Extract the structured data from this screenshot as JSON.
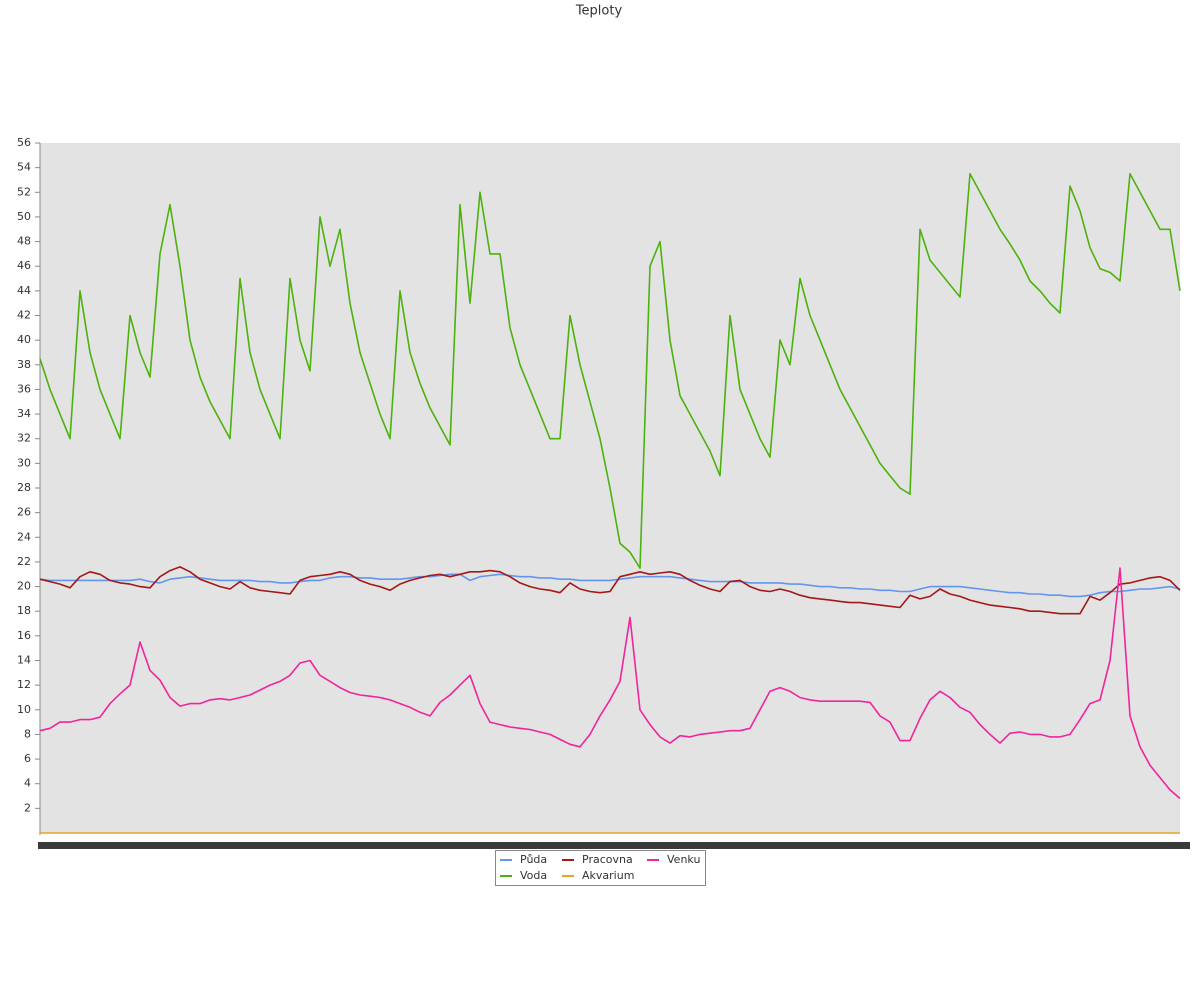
{
  "chart_data": {
    "type": "line",
    "title": "Teploty",
    "ylim": [
      0,
      56
    ],
    "yticks": [
      2,
      4,
      6,
      8,
      10,
      12,
      14,
      16,
      18,
      20,
      22,
      24,
      26,
      28,
      30,
      32,
      34,
      36,
      38,
      40,
      42,
      44,
      46,
      48,
      50,
      52,
      54,
      56
    ],
    "legend": "bottom",
    "series": [
      {
        "name": "Půda",
        "color": "#6495ed",
        "values": [
          20.6,
          20.5,
          20.5,
          20.5,
          20.5,
          20.5,
          20.5,
          20.5,
          20.5,
          20.5,
          20.6,
          20.4,
          20.3,
          20.6,
          20.7,
          20.8,
          20.7,
          20.6,
          20.5,
          20.5,
          20.5,
          20.5,
          20.4,
          20.4,
          20.3,
          20.3,
          20.4,
          20.5,
          20.5,
          20.7,
          20.8,
          20.8,
          20.7,
          20.7,
          20.6,
          20.6,
          20.6,
          20.7,
          20.8,
          20.8,
          20.9,
          21.0,
          21.0,
          20.5,
          20.8,
          20.9,
          21.0,
          20.9,
          20.8,
          20.8,
          20.7,
          20.7,
          20.6,
          20.6,
          20.5,
          20.5,
          20.5,
          20.5,
          20.6,
          20.7,
          20.8,
          20.8,
          20.8,
          20.8,
          20.7,
          20.6,
          20.5,
          20.4,
          20.4,
          20.4,
          20.4,
          20.3,
          20.3,
          20.3,
          20.3,
          20.2,
          20.2,
          20.1,
          20.0,
          20.0,
          19.9,
          19.9,
          19.8,
          19.8,
          19.7,
          19.7,
          19.6,
          19.6,
          19.8,
          20.0,
          20.0,
          20.0,
          20.0,
          19.9,
          19.8,
          19.7,
          19.6,
          19.5,
          19.5,
          19.4,
          19.4,
          19.3,
          19.3,
          19.2,
          19.2,
          19.3,
          19.5,
          19.6,
          19.6,
          19.7,
          19.8,
          19.8,
          19.9,
          20.0,
          19.8
        ]
      },
      {
        "name": "Voda",
        "color": "#4cb20c",
        "values": [
          38.5,
          36,
          34,
          32,
          44,
          39,
          36,
          34,
          32,
          42,
          39,
          37,
          47,
          51,
          46,
          40,
          37,
          35,
          33.5,
          32,
          45,
          39,
          36,
          34,
          32,
          45,
          40,
          37.5,
          50,
          46,
          49,
          43,
          39,
          36.5,
          34,
          32,
          44,
          39,
          36.5,
          34.5,
          33,
          31.5,
          51,
          43,
          52,
          47,
          47,
          41,
          38,
          36,
          34,
          32,
          32,
          42,
          38,
          35,
          32,
          28,
          23.5,
          22.8,
          21.5,
          46,
          48,
          40,
          35.5,
          34,
          32.5,
          31,
          29,
          42,
          36,
          34,
          32,
          30.5,
          40,
          38,
          45,
          42,
          40,
          38,
          36,
          34.5,
          33,
          31.5,
          30,
          29,
          28,
          27.5,
          49,
          46.5,
          45.5,
          44.5,
          43.5,
          53.5,
          52,
          50.5,
          49,
          47.8,
          46.5,
          44.8,
          44,
          43,
          42.2,
          52.5,
          50.5,
          47.5,
          45.8,
          45.5,
          44.8,
          53.5,
          52,
          50.5,
          49,
          49,
          44
        ]
      },
      {
        "name": "Pracovna",
        "color": "#a31818",
        "values": [
          20.6,
          20.4,
          20.2,
          19.9,
          20.8,
          21.2,
          21.0,
          20.5,
          20.3,
          20.2,
          20.0,
          19.9,
          20.8,
          21.3,
          21.6,
          21.2,
          20.6,
          20.3,
          20.0,
          19.8,
          20.4,
          19.9,
          19.7,
          19.6,
          19.5,
          19.4,
          20.5,
          20.8,
          20.9,
          21.0,
          21.2,
          21.0,
          20.5,
          20.2,
          20.0,
          19.7,
          20.2,
          20.5,
          20.7,
          20.9,
          21.0,
          20.8,
          21.0,
          21.2,
          21.2,
          21.3,
          21.2,
          20.8,
          20.3,
          20.0,
          19.8,
          19.7,
          19.5,
          20.3,
          19.8,
          19.6,
          19.5,
          19.6,
          20.8,
          21.0,
          21.2,
          21.0,
          21.1,
          21.2,
          21.0,
          20.5,
          20.1,
          19.8,
          19.6,
          20.4,
          20.5,
          20.0,
          19.7,
          19.6,
          19.8,
          19.6,
          19.3,
          19.1,
          19.0,
          18.9,
          18.8,
          18.7,
          18.7,
          18.6,
          18.5,
          18.4,
          18.3,
          19.3,
          19.0,
          19.2,
          19.8,
          19.4,
          19.2,
          18.9,
          18.7,
          18.5,
          18.4,
          18.3,
          18.2,
          18.0,
          18.0,
          17.9,
          17.8,
          17.8,
          17.8,
          19.2,
          18.9,
          19.5,
          20.2,
          20.3,
          20.5,
          20.7,
          20.8,
          20.5,
          19.7
        ]
      },
      {
        "name": "Akvarium",
        "color": "#e8a323",
        "values": [
          0,
          0,
          0,
          0,
          0,
          0,
          0,
          0,
          0,
          0,
          0,
          0,
          0,
          0,
          0,
          0,
          0,
          0,
          0,
          0,
          0,
          0,
          0,
          0,
          0,
          0,
          0,
          0,
          0,
          0,
          0,
          0,
          0,
          0,
          0,
          0,
          0,
          0,
          0,
          0,
          0,
          0,
          0,
          0,
          0,
          0,
          0,
          0,
          0,
          0,
          0,
          0,
          0,
          0,
          0,
          0,
          0,
          0,
          0,
          0,
          0,
          0,
          0,
          0,
          0,
          0,
          0,
          0,
          0,
          0,
          0,
          0,
          0,
          0,
          0,
          0,
          0,
          0,
          0,
          0,
          0,
          0,
          0,
          0,
          0,
          0,
          0,
          0,
          0,
          0,
          0,
          0,
          0,
          0,
          0,
          0,
          0,
          0,
          0,
          0,
          0,
          0,
          0,
          0,
          0,
          0,
          0,
          0,
          0,
          0,
          0,
          0,
          0,
          0,
          0
        ]
      },
      {
        "name": "Venku",
        "color": "#f0249b",
        "values": [
          8.3,
          8.5,
          9.0,
          9.0,
          9.2,
          9.2,
          9.4,
          10.5,
          11.3,
          12.0,
          15.5,
          13.2,
          12.4,
          11.0,
          10.3,
          10.5,
          10.5,
          10.8,
          10.9,
          10.8,
          11.0,
          11.2,
          11.6,
          12.0,
          12.3,
          12.8,
          13.8,
          14.0,
          12.8,
          12.3,
          11.8,
          11.4,
          11.2,
          11.1,
          11.0,
          10.8,
          10.5,
          10.2,
          9.8,
          9.5,
          10.6,
          11.2,
          12.0,
          12.8,
          10.5,
          9.0,
          8.8,
          8.6,
          8.5,
          8.4,
          8.2,
          8.0,
          7.6,
          7.2,
          7.0,
          8.0,
          9.5,
          10.8,
          12.3,
          17.5,
          10.0,
          8.8,
          7.8,
          7.3,
          7.9,
          7.8,
          8.0,
          8.1,
          8.2,
          8.3,
          8.3,
          8.5,
          10.0,
          11.5,
          11.8,
          11.5,
          11.0,
          10.8,
          10.7,
          10.7,
          10.7,
          10.7,
          10.7,
          10.6,
          9.5,
          9.0,
          7.5,
          7.5,
          9.3,
          10.8,
          11.5,
          11.0,
          10.2,
          9.8,
          8.8,
          8.0,
          7.3,
          8.1,
          8.2,
          8.0,
          8.0,
          7.8,
          7.8,
          8.0,
          9.2,
          10.5,
          10.8,
          14.0,
          21.5,
          9.5,
          7.0,
          5.5,
          4.5,
          3.5,
          2.8
        ]
      }
    ]
  }
}
